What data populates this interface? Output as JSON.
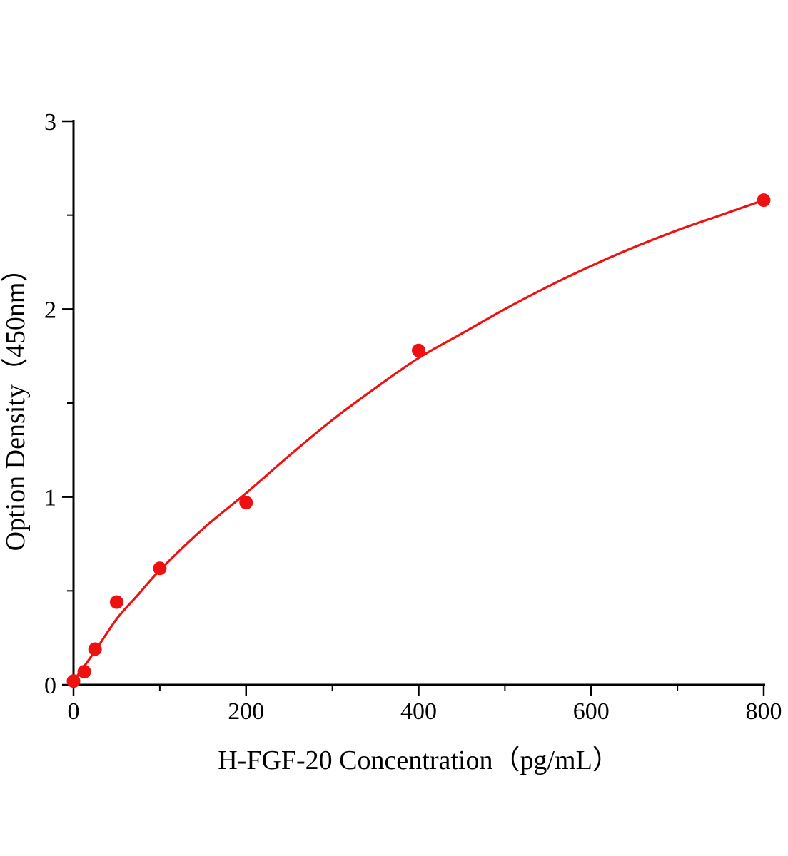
{
  "page": {
    "background": "#ffffff"
  },
  "chart_data": {
    "type": "scatter",
    "title": "",
    "xlabel": "H-FGF-20 Concentration（pg/mL）",
    "ylabel": "Option Density（450nm）",
    "xlim": [
      0,
      800
    ],
    "ylim": [
      0,
      3
    ],
    "x_ticks": [
      0,
      200,
      400,
      600,
      800
    ],
    "y_ticks": [
      0,
      1,
      2,
      3
    ],
    "x_minor_ticks": [
      100,
      300,
      500,
      700
    ],
    "y_minor_ticks": [
      0.5,
      1.5,
      2.5
    ],
    "grid": false,
    "legend": false,
    "axis_color": "#000000",
    "point_color": "#ee1111",
    "line_color": "#ee1111",
    "points": [
      [
        0,
        0.02
      ],
      [
        12.5,
        0.07
      ],
      [
        25,
        0.19
      ],
      [
        50,
        0.44
      ],
      [
        100,
        0.62
      ],
      [
        200,
        0.97
      ],
      [
        400,
        1.78
      ],
      [
        800,
        2.58
      ]
    ],
    "fit_curve": [
      [
        0,
        0.02
      ],
      [
        25,
        0.18
      ],
      [
        50,
        0.35
      ],
      [
        75,
        0.48
      ],
      [
        100,
        0.61
      ],
      [
        150,
        0.83
      ],
      [
        200,
        1.02
      ],
      [
        250,
        1.22
      ],
      [
        300,
        1.41
      ],
      [
        350,
        1.58
      ],
      [
        400,
        1.74
      ],
      [
        450,
        1.87
      ],
      [
        500,
        2.0
      ],
      [
        550,
        2.12
      ],
      [
        600,
        2.23
      ],
      [
        650,
        2.33
      ],
      [
        700,
        2.42
      ],
      [
        750,
        2.5
      ],
      [
        800,
        2.58
      ]
    ]
  }
}
